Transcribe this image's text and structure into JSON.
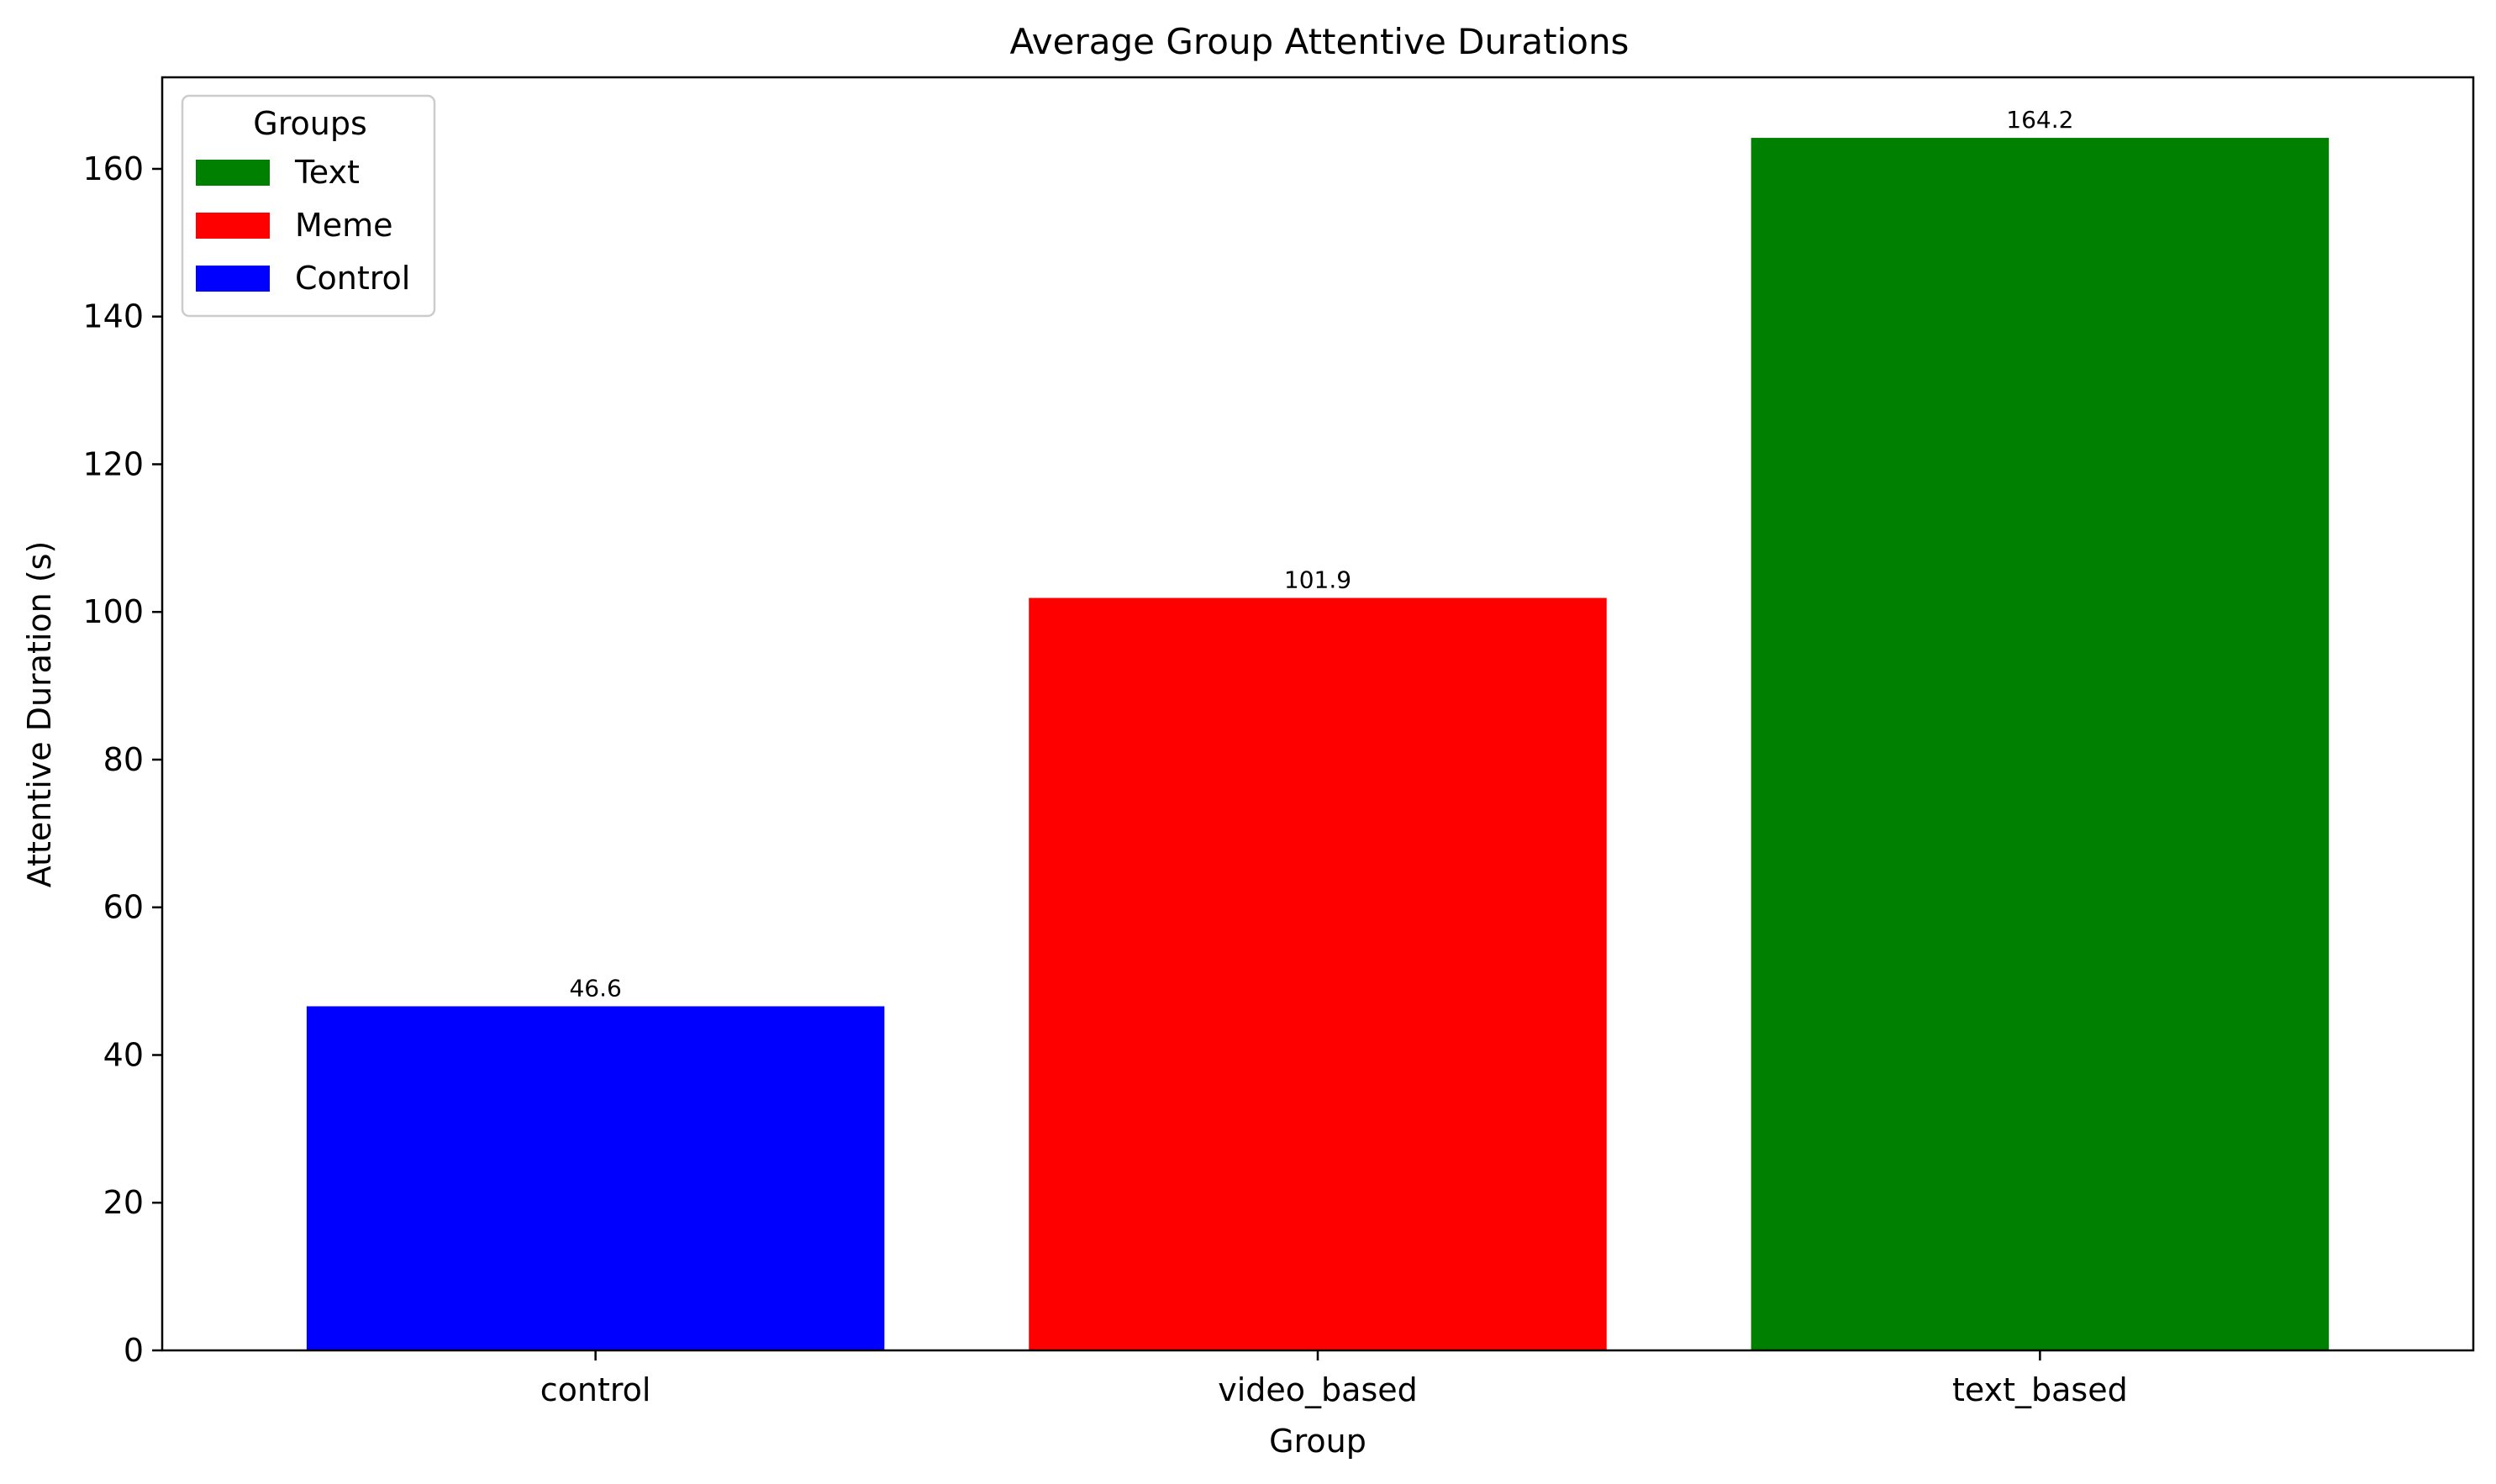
{
  "chart_data": {
    "type": "bar",
    "title": "Average Group Attentive Durations",
    "xlabel": "Group",
    "ylabel": "Attentive Duration (s)",
    "categories": [
      "control",
      "video_based",
      "text_based"
    ],
    "values": [
      46.6,
      101.9,
      164.2
    ],
    "value_labels": [
      "46.6",
      "101.9",
      "164.2"
    ],
    "bar_colors": [
      "#0000ff",
      "#ff0000",
      "#008000"
    ],
    "ylim": [
      0,
      172.4
    ],
    "yticks": [
      0,
      20,
      40,
      60,
      80,
      100,
      120,
      140,
      160
    ],
    "grid": false,
    "legend": {
      "title": "Groups",
      "placement": "top-left",
      "entries": [
        {
          "label": "Text",
          "color": "#008000"
        },
        {
          "label": "Meme",
          "color": "#ff0000"
        },
        {
          "label": "Control",
          "color": "#0000ff"
        }
      ]
    }
  }
}
